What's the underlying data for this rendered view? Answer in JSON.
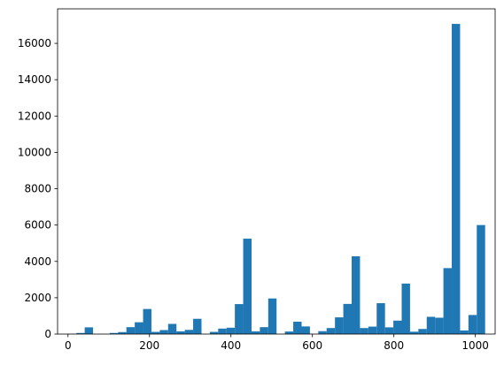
{
  "chart_data": {
    "type": "bar",
    "title": "",
    "xlabel": "",
    "ylabel": "",
    "xlim": [
      -25.6,
      1048.6
    ],
    "ylim": [
      0,
      17900
    ],
    "bin_width": 20.48,
    "x": [
      0,
      20.48,
      40.96,
      61.44,
      81.92,
      102.4,
      122.88,
      143.36,
      163.84,
      184.32,
      204.8,
      225.28,
      245.76,
      266.24,
      286.72,
      307.2,
      327.68,
      348.16,
      368.64,
      389.12,
      409.6,
      430.08,
      450.56,
      471.04,
      491.52,
      512,
      532.48,
      552.96,
      573.44,
      593.92,
      614.4,
      634.88,
      655.36,
      675.84,
      696.32,
      716.8,
      737.28,
      757.76,
      778.24,
      798.72,
      819.2,
      839.68,
      860.16,
      880.64,
      901.12,
      921.6,
      942.08,
      962.56,
      983.04,
      1003.52
    ],
    "values": [
      10,
      60,
      370,
      0,
      0,
      60,
      110,
      380,
      650,
      1380,
      120,
      220,
      560,
      150,
      230,
      840,
      0,
      120,
      300,
      350,
      1650,
      5250,
      150,
      380,
      1960,
      0,
      140,
      680,
      420,
      0,
      160,
      330,
      920,
      1660,
      4280,
      330,
      410,
      1700,
      370,
      740,
      2780,
      130,
      280,
      950,
      900,
      3630,
      17070,
      200,
      1050,
      6000
    ],
    "xticks": [
      0,
      200,
      400,
      600,
      800,
      1000
    ],
    "yticks": [
      0,
      2000,
      4000,
      6000,
      8000,
      10000,
      12000,
      14000,
      16000
    ],
    "bar_color": "#1f77b4",
    "grid": false,
    "legend": "none"
  }
}
